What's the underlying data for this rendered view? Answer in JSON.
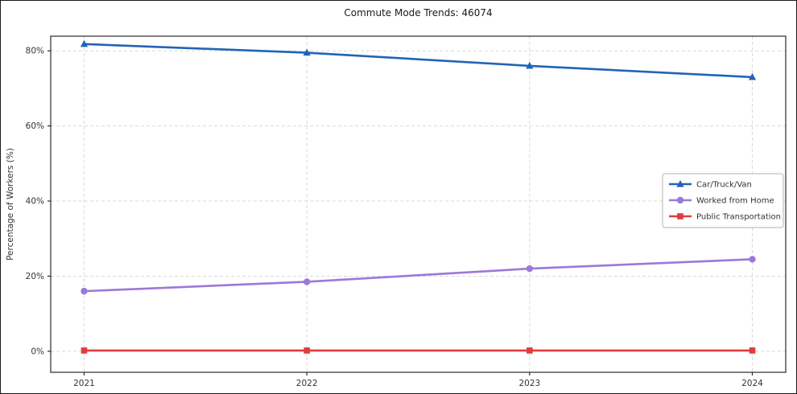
{
  "chart_data": {
    "type": "line",
    "title": "Commute Mode Trends: 46074",
    "xlabel": "",
    "ylabel": "Percentage of Workers (%)",
    "x": [
      2021,
      2022,
      2023,
      2024
    ],
    "xtick_labels": [
      "2021",
      "2022",
      "2023",
      "2024"
    ],
    "xlim": [
      2020.85,
      2024.15
    ],
    "ylim": [
      -5.6,
      83.9
    ],
    "yticks": [
      0,
      20,
      40,
      60,
      80
    ],
    "ytick_labels": [
      "0%",
      "20%",
      "40%",
      "60%",
      "80%"
    ],
    "grid": true,
    "legend_position": "center-right",
    "series": [
      {
        "name": "Car/Truck/Van",
        "color": "#2264b5",
        "marker": "triangle",
        "values": [
          81.8,
          79.5,
          76.0,
          73.0
        ]
      },
      {
        "name": "Worked from Home",
        "color": "#9b79d8",
        "marker": "circle",
        "values": [
          16.0,
          18.5,
          22.0,
          24.5
        ]
      },
      {
        "name": "Public Transportation",
        "color": "#e23b3b",
        "marker": "square",
        "values": [
          0.2,
          0.2,
          0.2,
          0.2
        ]
      }
    ]
  }
}
